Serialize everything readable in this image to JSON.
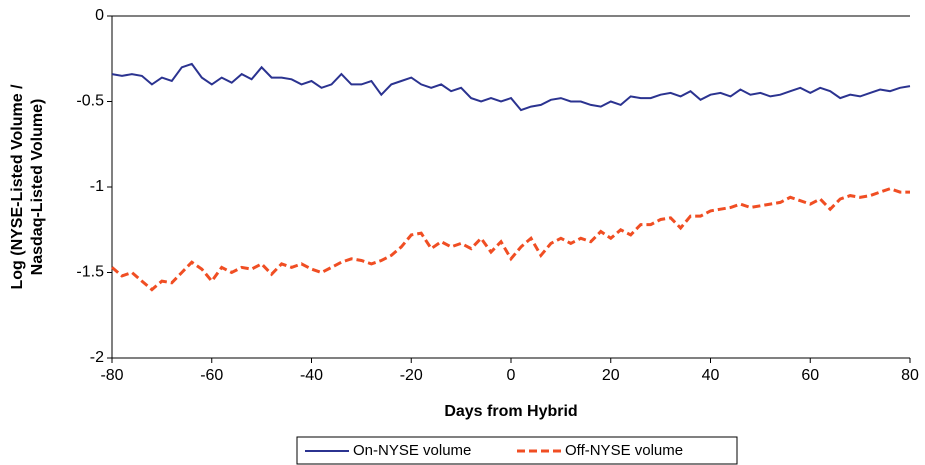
{
  "chart_data": {
    "type": "line",
    "xlabel": "Days from Hybrid",
    "ylabel": [
      "Log (NYSE-Listed Volume /",
      "Nasdaq-Listed Volume)"
    ],
    "x": [
      -80,
      -78,
      -76,
      -74,
      -72,
      -70,
      -68,
      -66,
      -64,
      -62,
      -60,
      -58,
      -56,
      -54,
      -52,
      -50,
      -48,
      -46,
      -44,
      -42,
      -40,
      -38,
      -36,
      -34,
      -32,
      -30,
      -28,
      -26,
      -24,
      -22,
      -20,
      -18,
      -16,
      -14,
      -12,
      -10,
      -8,
      -6,
      -4,
      -2,
      0,
      2,
      4,
      6,
      8,
      10,
      12,
      14,
      16,
      18,
      20,
      22,
      24,
      26,
      28,
      30,
      32,
      34,
      36,
      38,
      40,
      42,
      44,
      46,
      48,
      50,
      52,
      54,
      56,
      58,
      60,
      62,
      64,
      66,
      68,
      70,
      72,
      74,
      76,
      78,
      80
    ],
    "series": [
      {
        "name": "On-NYSE volume",
        "color": "#2b3390",
        "dash": "none",
        "values": [
          -0.34,
          -0.35,
          -0.34,
          -0.35,
          -0.4,
          -0.36,
          -0.38,
          -0.3,
          -0.28,
          -0.36,
          -0.4,
          -0.36,
          -0.39,
          -0.34,
          -0.37,
          -0.3,
          -0.36,
          -0.36,
          -0.37,
          -0.4,
          -0.38,
          -0.42,
          -0.4,
          -0.34,
          -0.4,
          -0.4,
          -0.38,
          -0.46,
          -0.4,
          -0.38,
          -0.36,
          -0.4,
          -0.42,
          -0.4,
          -0.44,
          -0.42,
          -0.48,
          -0.5,
          -0.48,
          -0.5,
          -0.48,
          -0.55,
          -0.53,
          -0.52,
          -0.49,
          -0.48,
          -0.5,
          -0.5,
          -0.52,
          -0.53,
          -0.5,
          -0.52,
          -0.47,
          -0.48,
          -0.48,
          -0.46,
          -0.45,
          -0.47,
          -0.44,
          -0.49,
          -0.46,
          -0.45,
          -0.47,
          -0.43,
          -0.46,
          -0.45,
          -0.47,
          -0.46,
          -0.44,
          -0.42,
          -0.45,
          -0.42,
          -0.44,
          -0.48,
          -0.46,
          -0.47,
          -0.45,
          -0.43,
          -0.44,
          -0.42,
          -0.41
        ]
      },
      {
        "name": "Off-NYSE volume",
        "color": "#f04e23",
        "dash": "8,4",
        "values": [
          -1.47,
          -1.52,
          -1.5,
          -1.55,
          -1.6,
          -1.55,
          -1.56,
          -1.5,
          -1.44,
          -1.48,
          -1.55,
          -1.47,
          -1.5,
          -1.47,
          -1.48,
          -1.45,
          -1.51,
          -1.45,
          -1.47,
          -1.45,
          -1.48,
          -1.5,
          -1.47,
          -1.44,
          -1.42,
          -1.43,
          -1.45,
          -1.43,
          -1.4,
          -1.35,
          -1.28,
          -1.27,
          -1.36,
          -1.32,
          -1.35,
          -1.33,
          -1.36,
          -1.3,
          -1.38,
          -1.32,
          -1.42,
          -1.35,
          -1.3,
          -1.4,
          -1.33,
          -1.3,
          -1.33,
          -1.3,
          -1.32,
          -1.26,
          -1.3,
          -1.25,
          -1.28,
          -1.22,
          -1.22,
          -1.19,
          -1.18,
          -1.24,
          -1.17,
          -1.17,
          -1.14,
          -1.13,
          -1.12,
          -1.1,
          -1.12,
          -1.11,
          -1.1,
          -1.09,
          -1.06,
          -1.08,
          -1.1,
          -1.07,
          -1.13,
          -1.07,
          -1.05,
          -1.06,
          -1.05,
          -1.03,
          -1.01,
          -1.03,
          -1.03
        ]
      }
    ],
    "xlim": [
      -80,
      80
    ],
    "ylim": [
      -2,
      0
    ],
    "xticks": [
      -80,
      -60,
      -40,
      -20,
      0,
      20,
      40,
      60,
      80
    ],
    "yticks": [
      0,
      -0.5,
      -1,
      -1.5,
      -2
    ],
    "grid": false,
    "legend": "bottom"
  }
}
